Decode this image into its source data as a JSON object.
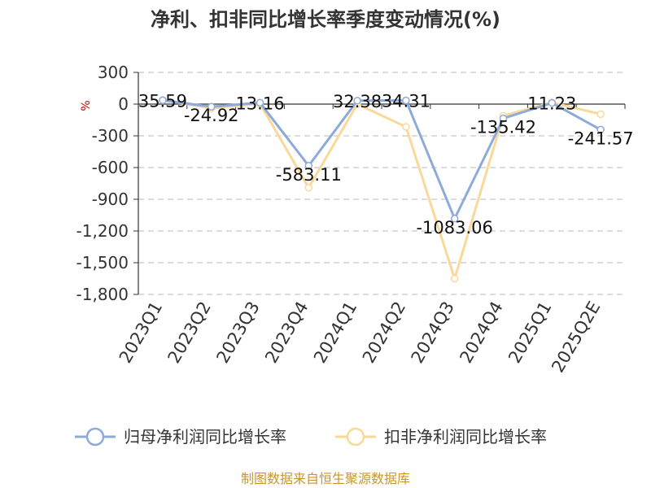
{
  "chart_data": {
    "type": "line",
    "title": "净利、扣非同比增长率季度变动情况(%)",
    "ylabel": "%",
    "categories": [
      "2023Q1",
      "2023Q2",
      "2023Q3",
      "2023Q4",
      "2024Q1",
      "2024Q2",
      "2024Q3",
      "2024Q4",
      "2025Q1",
      "2025Q2E"
    ],
    "ylim": [
      -1800,
      300
    ],
    "yticks": [
      300,
      0,
      -300,
      -600,
      -900,
      -1200,
      -1500,
      -1800
    ],
    "ytick_labels": [
      "300",
      "0",
      "-300",
      "-600",
      "-900",
      "-1,200",
      "-1,500",
      "-1,800"
    ],
    "grid": true,
    "legend_position": "bottom",
    "series": [
      {
        "name": "归母净利润同比增长率",
        "color": "#8eaad8",
        "values": [
          35.59,
          -24.92,
          13.16,
          -583.11,
          32.38,
          34.31,
          -1083.06,
          -135.42,
          11.23,
          -241.57
        ],
        "labels": [
          "35.59",
          "-24.92",
          "13.16",
          "-583.11",
          "32.38",
          "34.31",
          "-1083.06",
          "-135.42",
          "11.23",
          "-241.57"
        ]
      },
      {
        "name": "扣非净利润同比增长率",
        "color": "#f9d99a",
        "values": [
          40,
          -40,
          5,
          -790,
          0,
          -215,
          -1650,
          -110,
          15,
          -95
        ]
      }
    ]
  },
  "source": "制图数据来自恒生聚源数据库",
  "colors": {
    "unit": "#cc0000",
    "source": "#c8962a",
    "grid": "#c8c8c8",
    "axis": "#333333"
  }
}
